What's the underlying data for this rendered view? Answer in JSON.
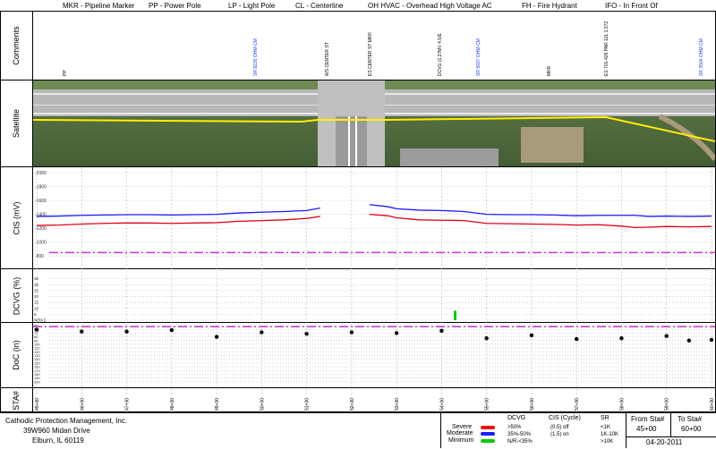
{
  "legend_top": [
    {
      "text": "MKR - Pipeline Marker"
    },
    {
      "text": "PP - Power Pole"
    },
    {
      "text": "LP - Light Pole"
    },
    {
      "text": "CL - Centerline"
    },
    {
      "text": "OH HVAC - Overhead High Voltage AC"
    },
    {
      "text": "FH - Fire Hydrant"
    },
    {
      "text": "IFO - In Front Of"
    }
  ],
  "row_labels": {
    "comments": "Comments",
    "satellite": "Satellite",
    "cis": "CIS (mV)",
    "dcvg": "DCVG (%)",
    "doc": "DoC (in)",
    "sta": "STA#"
  },
  "comments": [
    {
      "text": "PP",
      "color": "#000000"
    },
    {
      "text": "SR 8235 OHM-CM",
      "color": "#1a3cff"
    },
    {
      "text": "WS CENTER ST",
      "color": "#000000"
    },
    {
      "text": "ES CENTER ST MKR",
      "color": "#000000"
    },
    {
      "text": "DCVG (1.27MV 4.5/E",
      "color": "#000000"
    },
    {
      "text": "SR 5937 OHM-CM",
      "color": "#1a3cff"
    },
    {
      "text": "MKR",
      "color": "#000000"
    },
    {
      "text": "ES 701-425 PAR 12L 1.372",
      "color": "#000000"
    },
    {
      "text": "SR 3504 OHM-CM",
      "color": "#1a3cff"
    }
  ],
  "cis_axis_ticks": [
    "-2000",
    "-1800",
    "-1600",
    "-1400",
    "-1200",
    "-1000",
    "-800"
  ],
  "dcvg_axis_ticks": [
    "35",
    "30",
    "25",
    "20",
    "15",
    "10",
    "5",
    "N/RK3"
  ],
  "doc_axis_ticks": [
    "50",
    "60",
    "70",
    "80",
    "90",
    "100",
    "110",
    "120",
    "130",
    "140",
    "150",
    "160",
    "170",
    "180",
    "190",
    "200"
  ],
  "stations": [
    "45+00",
    "46+00",
    "47+00",
    "48+00",
    "49+00",
    "50+00",
    "51+00",
    "52+00",
    "53+00",
    "54+00",
    "55+00",
    "56+00",
    "57+00",
    "58+00",
    "59+00",
    "60+00"
  ],
  "chart_data": [
    {
      "type": "line",
      "ylabel": "CIS (mV)",
      "ylim": [
        -2000,
        -700
      ],
      "x_stations": [
        45.0,
        45.5,
        46.0,
        46.5,
        47.0,
        47.5,
        48.0,
        48.5,
        49.0,
        49.5,
        50.0,
        50.5,
        51.0,
        51.3,
        51.6,
        52.0,
        52.4,
        52.8,
        53.0,
        53.5,
        54.0,
        54.5,
        55.0,
        55.5,
        56.0,
        56.5,
        57.0,
        57.5,
        58.0,
        58.3,
        58.6,
        59.0,
        59.5,
        60.0
      ],
      "series": [
        {
          "name": "On",
          "color": "#1a1aff",
          "values": [
            -1370,
            -1375,
            -1385,
            -1390,
            -1395,
            -1395,
            -1390,
            -1395,
            -1400,
            -1420,
            -1430,
            -1440,
            -1455,
            -1490,
            null,
            null,
            -1540,
            -1510,
            -1480,
            -1460,
            -1455,
            -1440,
            -1400,
            -1395,
            -1395,
            -1390,
            -1380,
            -1385,
            -1385,
            -1385,
            -1370,
            -1375,
            -1370,
            -1375
          ]
        },
        {
          "name": "Off",
          "color": "#e0001a",
          "values": [
            -1240,
            -1245,
            -1260,
            -1270,
            -1275,
            -1275,
            -1270,
            -1275,
            -1280,
            -1300,
            -1310,
            -1320,
            -1340,
            -1370,
            null,
            null,
            -1400,
            -1380,
            -1350,
            -1320,
            -1315,
            -1310,
            -1270,
            -1265,
            -1260,
            -1255,
            -1245,
            -1250,
            -1230,
            -1210,
            -1215,
            -1225,
            -1220,
            -1225
          ]
        }
      ],
      "reference_line": {
        "value": -850,
        "color": "#cc33cc"
      }
    },
    {
      "type": "bar",
      "ylabel": "DCVG (%)",
      "ylim": [
        0,
        40
      ],
      "points": [
        {
          "station": 54.3,
          "value": 8,
          "color": "#00cc00"
        }
      ]
    },
    {
      "type": "scatter",
      "ylabel": "DoC (in)",
      "ylim": [
        50,
        210
      ],
      "reference_line": {
        "value": 60,
        "color": "#cc33cc"
      },
      "points": [
        {
          "station": 45.0,
          "value": 61
        },
        {
          "station": 46.0,
          "value": 66
        },
        {
          "station": 47.0,
          "value": 66
        },
        {
          "station": 48.0,
          "value": 62
        },
        {
          "station": 49.0,
          "value": 80
        },
        {
          "station": 50.0,
          "value": 68
        },
        {
          "station": 51.0,
          "value": 72
        },
        {
          "station": 52.0,
          "value": 68
        },
        {
          "station": 53.0,
          "value": 70
        },
        {
          "station": 54.0,
          "value": 64
        },
        {
          "station": 55.0,
          "value": 84
        },
        {
          "station": 56.0,
          "value": 76
        },
        {
          "station": 57.0,
          "value": 86
        },
        {
          "station": 58.0,
          "value": 84
        },
        {
          "station": 59.0,
          "value": 78
        },
        {
          "station": 59.5,
          "value": 90
        },
        {
          "station": 60.0,
          "value": 88
        }
      ]
    }
  ],
  "footer": {
    "company": "Cathodic Protection Management, Inc.",
    "address1": "39W960 Midan Drive",
    "address2": "Elburn, IL  60119",
    "dcvg_head": "DCVG",
    "cis_head": "CIS (Cycle)",
    "sr_head": "SR",
    "severe": "Severe",
    "moderate": "Moderate",
    "minimum": "Minimum",
    "dcvg_severe": ">50%",
    "dcvg_moderate": "35%-50%",
    "dcvg_minimum": "N/R-<35%",
    "cis_off": "(0.5) off",
    "cis_on": "(1.5) on",
    "sr_lt": "<1K",
    "sr_mid": "1K-10K",
    "sr_gt": ">10K",
    "severe_color": "#ff0000",
    "moderate_color": "#1a1aff",
    "minimum_color": "#00cc00",
    "from_label": "From Sta#",
    "from_value": "45+00",
    "to_label": "To Sta#",
    "to_value": "60+00",
    "date": "04-20-2011"
  }
}
